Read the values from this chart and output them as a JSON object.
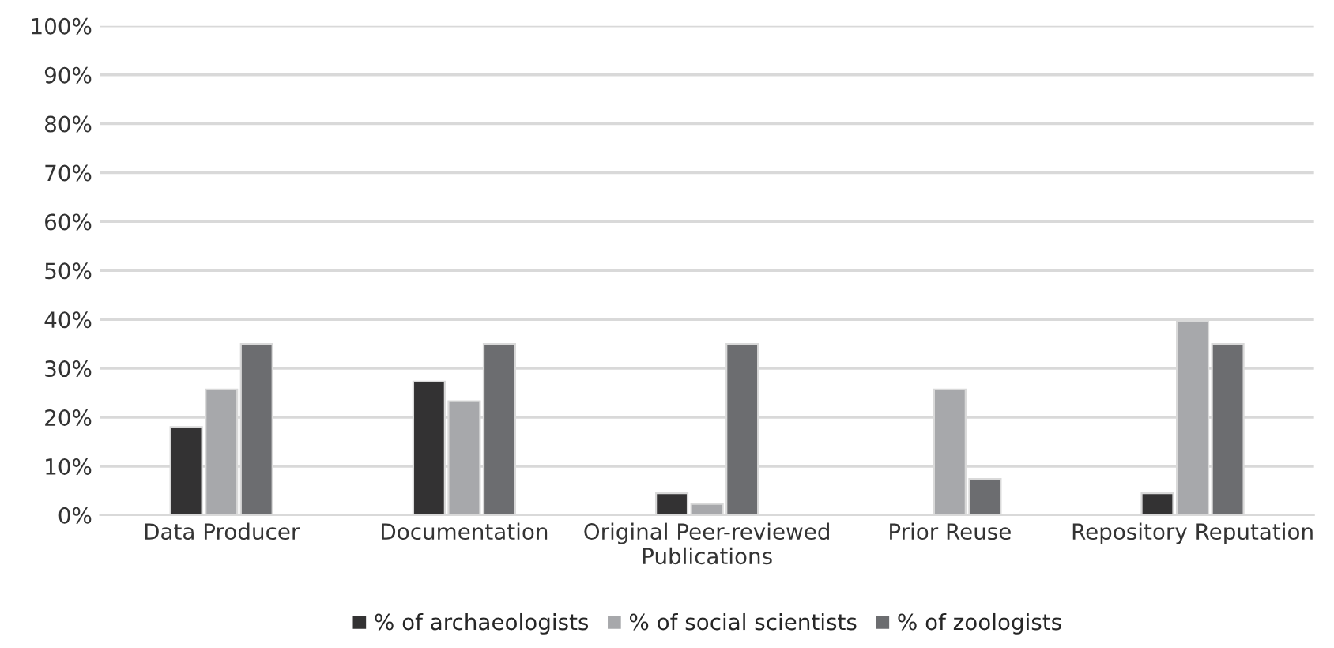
{
  "chart_data": {
    "type": "bar",
    "categories": [
      "Data Producer",
      "Documentation",
      "Original Peer-reviewed\nPublications",
      "Prior Reuse",
      "Repository Reputation"
    ],
    "series": [
      {
        "name": "% of archaeologists",
        "color": "#333233",
        "values": [
          18,
          27.3,
          4.5,
          null,
          4.5
        ]
      },
      {
        "name": "% of social scientists",
        "color": "#a7a8ab",
        "values": [
          25.7,
          23.3,
          2.3,
          25.7,
          39.7
        ]
      },
      {
        "name": "% of zoologists",
        "color": "#6c6d70",
        "values": [
          35,
          35,
          35,
          7.4,
          35
        ]
      }
    ],
    "ylim": [
      0,
      100
    ],
    "yticks": [
      {
        "value": 0,
        "label": "0%"
      },
      {
        "value": 10,
        "label": "10%"
      },
      {
        "value": 20,
        "label": "20%"
      },
      {
        "value": 30,
        "label": "30%"
      },
      {
        "value": 40,
        "label": "40%"
      },
      {
        "value": 50,
        "label": "50%"
      },
      {
        "value": 60,
        "label": "60%"
      },
      {
        "value": 70,
        "label": "70%"
      },
      {
        "value": 80,
        "label": "80%"
      },
      {
        "value": 90,
        "label": "90%"
      },
      {
        "value": 100,
        "label": "100%"
      }
    ],
    "grid": "y",
    "legend": "bottom"
  }
}
